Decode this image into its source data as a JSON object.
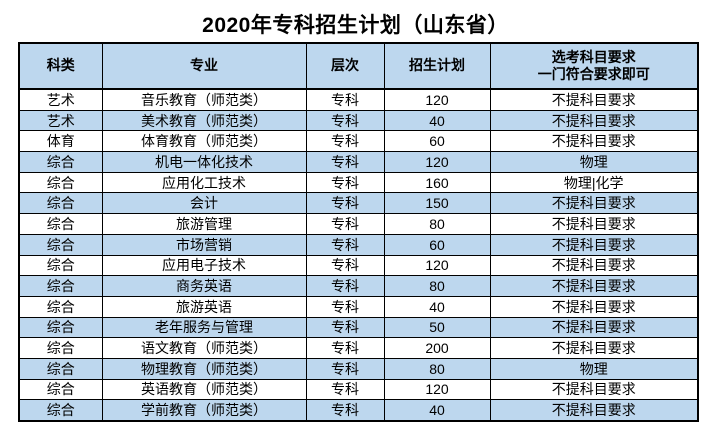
{
  "title": "2020年专科招生计划（山东省）",
  "table": {
    "headers": [
      "科类",
      "专业",
      "层次",
      "招生计划",
      "选考科目要求\n一门符合要求即可"
    ],
    "rows": [
      [
        "艺术",
        "音乐教育（师范类）",
        "专科",
        "120",
        "不提科目要求"
      ],
      [
        "艺术",
        "美术教育（师范类）",
        "专科",
        "40",
        "不提科目要求"
      ],
      [
        "体育",
        "体育教育（师范类）",
        "专科",
        "60",
        "不提科目要求"
      ],
      [
        "综合",
        "机电一体化技术",
        "专科",
        "120",
        "物理"
      ],
      [
        "综合",
        "应用化工技术",
        "专科",
        "160",
        "物理|化学"
      ],
      [
        "综合",
        "会计",
        "专科",
        "150",
        "不提科目要求"
      ],
      [
        "综合",
        "旅游管理",
        "专科",
        "80",
        "不提科目要求"
      ],
      [
        "综合",
        "市场营销",
        "专科",
        "60",
        "不提科目要求"
      ],
      [
        "综合",
        "应用电子技术",
        "专科",
        "120",
        "不提科目要求"
      ],
      [
        "综合",
        "商务英语",
        "专科",
        "80",
        "不提科目要求"
      ],
      [
        "综合",
        "旅游英语",
        "专科",
        "40",
        "不提科目要求"
      ],
      [
        "综合",
        "老年服务与管理",
        "专科",
        "50",
        "不提科目要求"
      ],
      [
        "综合",
        "语文教育（师范类）",
        "专科",
        "200",
        "不提科目要求"
      ],
      [
        "综合",
        "物理教育（师范类）",
        "专科",
        "80",
        "物理"
      ],
      [
        "综合",
        "英语教育（师范类）",
        "专科",
        "120",
        "不提科目要求"
      ],
      [
        "综合",
        "学前教育（师范类）",
        "专科",
        "40",
        "不提科目要求"
      ]
    ]
  },
  "colors": {
    "header_bg": "#BDD7EE",
    "row_alt_bg": "#BDD7EE",
    "border": "#000000",
    "text": "#000000",
    "page_bg": "#FFFFFF"
  }
}
